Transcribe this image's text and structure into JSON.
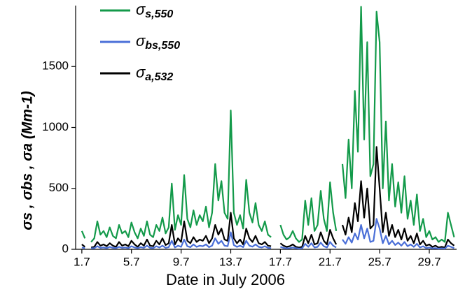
{
  "chart_data": {
    "type": "line",
    "x_label": "Date in July 2006",
    "y_label": "σs , σbs , σa (Mm-1)",
    "x": [
      1,
      1.25,
      1.5,
      1.75,
      2,
      2.25,
      2.5,
      2.75,
      3,
      3.25,
      3.5,
      3.75,
      4,
      4.25,
      4.5,
      4.75,
      5,
      5.25,
      5.5,
      5.75,
      6,
      6.25,
      6.5,
      6.75,
      7,
      7.25,
      7.5,
      7.75,
      8,
      8.25,
      8.5,
      8.75,
      9,
      9.25,
      9.5,
      9.75,
      10,
      10.25,
      10.5,
      10.75,
      11,
      11.25,
      11.5,
      11.75,
      12,
      12.25,
      12.5,
      12.75,
      13,
      13.25,
      13.5,
      13.75,
      14,
      14.25,
      14.5,
      14.75,
      15,
      15.25,
      15.5,
      15.75,
      16,
      16.25,
      16.5,
      16.75,
      17,
      17.25,
      17.5,
      17.75,
      18,
      18.25,
      18.5,
      18.75,
      19,
      19.25,
      19.5,
      19.75,
      20,
      20.25,
      20.5,
      20.75,
      21,
      21.25,
      21.5,
      21.75,
      22,
      22.25,
      22.5,
      22.75,
      23,
      23.25,
      23.5,
      23.75,
      24,
      24.25,
      24.5,
      24.75,
      25,
      25.25,
      25.5,
      25.75,
      26,
      26.25,
      26.5,
      26.75,
      27,
      27.25,
      27.5,
      27.75,
      28,
      28.25,
      28.5,
      28.75,
      29,
      29.25,
      29.5,
      29.75,
      30,
      30.25,
      30.5,
      30.75,
      31
    ],
    "series": [
      {
        "name": "σs,550",
        "color": "#139a4a",
        "values": [
          150,
          90,
          null,
          60,
          90,
          230,
          120,
          150,
          100,
          180,
          110,
          90,
          200,
          130,
          150,
          100,
          220,
          140,
          90,
          170,
          110,
          230,
          120,
          100,
          200,
          150,
          260,
          130,
          180,
          540,
          160,
          280,
          200,
          610,
          250,
          180,
          320,
          200,
          280,
          230,
          350,
          180,
          300,
          700,
          400,
          560,
          300,
          250,
          1140,
          300,
          200,
          280,
          170,
          570,
          300,
          220,
          380,
          200,
          150,
          230,
          120,
          100,
          null,
          null,
          200,
          120,
          80,
          100,
          150,
          90,
          60,
          80,
          400,
          200,
          420,
          150,
          200,
          480,
          250,
          150,
          550,
          300,
          150,
          null,
          700,
          420,
          900,
          500,
          1300,
          800,
          1990,
          900,
          1700,
          600,
          700,
          1950,
          1700,
          500,
          1050,
          400,
          700,
          350,
          550,
          300,
          600,
          250,
          400,
          200,
          450,
          150,
          250,
          100,
          150,
          80,
          100,
          60,
          80,
          60,
          300,
          200,
          100
        ]
      },
      {
        "name": "σa,532",
        "color": "#000000",
        "values": [
          40,
          20,
          null,
          15,
          20,
          60,
          30,
          40,
          25,
          50,
          30,
          20,
          60,
          30,
          40,
          25,
          70,
          40,
          20,
          50,
          30,
          80,
          30,
          25,
          70,
          40,
          90,
          35,
          50,
          200,
          40,
          90,
          60,
          230,
          70,
          50,
          100,
          60,
          80,
          70,
          110,
          50,
          90,
          200,
          120,
          170,
          80,
          70,
          300,
          90,
          50,
          80,
          40,
          170,
          90,
          60,
          110,
          50,
          40,
          60,
          30,
          25,
          null,
          null,
          50,
          30,
          20,
          25,
          40,
          20,
          15,
          20,
          110,
          50,
          120,
          40,
          50,
          140,
          70,
          40,
          160,
          90,
          40,
          null,
          200,
          120,
          260,
          140,
          380,
          230,
          560,
          260,
          500,
          170,
          200,
          840,
          500,
          140,
          300,
          110,
          200,
          100,
          160,
          80,
          170,
          70,
          110,
          50,
          130,
          40,
          70,
          30,
          40,
          20,
          30,
          15,
          20,
          15,
          80,
          50,
          30
        ]
      },
      {
        "name": "σbs,550",
        "color": "#4a6fd8",
        "values": [
          15,
          10,
          null,
          8,
          10,
          25,
          12,
          15,
          10,
          20,
          12,
          10,
          20,
          12,
          15,
          10,
          25,
          15,
          10,
          18,
          12,
          30,
          12,
          10,
          25,
          15,
          30,
          12,
          18,
          70,
          15,
          30,
          20,
          80,
          25,
          18,
          40,
          20,
          30,
          25,
          40,
          18,
          30,
          90,
          45,
          70,
          30,
          25,
          140,
          35,
          20,
          30,
          18,
          70,
          30,
          22,
          40,
          20,
          15,
          25,
          12,
          10,
          null,
          null,
          20,
          12,
          8,
          10,
          15,
          10,
          6,
          8,
          45,
          20,
          50,
          15,
          20,
          55,
          25,
          15,
          60,
          30,
          15,
          null,
          80,
          45,
          100,
          55,
          130,
          80,
          200,
          90,
          170,
          60,
          70,
          250,
          170,
          50,
          110,
          40,
          70,
          35,
          55,
          30,
          60,
          25,
          40,
          20,
          45,
          15,
          25,
          10,
          15,
          8,
          10,
          6,
          8,
          6,
          30,
          20,
          10
        ]
      }
    ],
    "legend_order": [
      0,
      2,
      1
    ],
    "xlim": [
      0.5,
      31.2
    ],
    "xticks": [
      {
        "value": 1,
        "label": "1.7"
      },
      {
        "value": 5,
        "label": "5.7"
      },
      {
        "value": 9,
        "label": "9.7"
      },
      {
        "value": 13,
        "label": "13.7"
      },
      {
        "value": 17,
        "label": "17.7"
      },
      {
        "value": 21,
        "label": "21.7"
      },
      {
        "value": 25,
        "label": "25.7"
      },
      {
        "value": 29,
        "label": "29.7"
      }
    ],
    "ylim": [
      0,
      2000
    ],
    "yticks": [
      0,
      500,
      1000,
      1500
    ]
  }
}
